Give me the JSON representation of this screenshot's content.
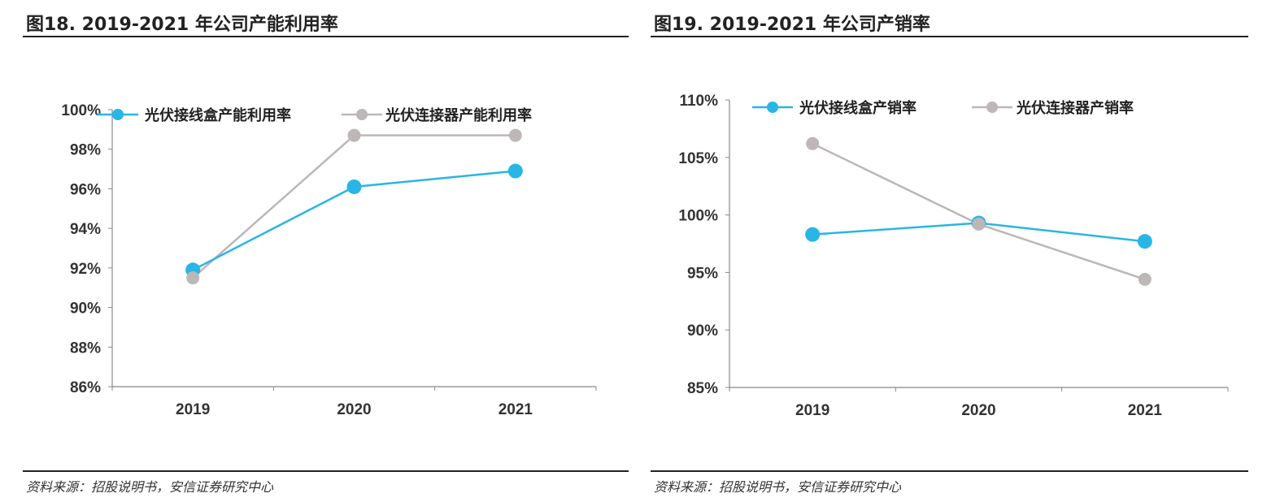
{
  "chart_data": [
    {
      "type": "line",
      "title": "图18. 2019-2021 年公司产能利用率",
      "source": "资料来源：招股说明书，安信证券研究中心",
      "categories": [
        "2019",
        "2020",
        "2021"
      ],
      "ylim": [
        0.86,
        1.0
      ],
      "yticks": [
        "86%",
        "88%",
        "90%",
        "92%",
        "94%",
        "96%",
        "98%",
        "100%"
      ],
      "grid": false,
      "legend": "top",
      "series": [
        {
          "name": "光伏接线盒产能利用率",
          "color": "#29B5E6",
          "values": [
            0.919,
            0.961,
            0.969
          ]
        },
        {
          "name": "光伏连接器产能利用率",
          "color": "#BDB7B7",
          "values": [
            0.915,
            0.987,
            0.987
          ]
        }
      ]
    },
    {
      "type": "line",
      "title": "图19. 2019-2021 年公司产销率",
      "source": "资料来源：招股说明书，安信证券研究中心",
      "categories": [
        "2019",
        "2020",
        "2021"
      ],
      "ylim": [
        0.85,
        1.1
      ],
      "yticks": [
        "85%",
        "90%",
        "95%",
        "100%",
        "105%",
        "110%"
      ],
      "grid": false,
      "legend": "top",
      "series": [
        {
          "name": "光伏接线盒产销率",
          "color": "#29B5E6",
          "values": [
            0.983,
            0.993,
            0.977
          ]
        },
        {
          "name": "光伏连接器产销率",
          "color": "#BDB7B7",
          "values": [
            1.062,
            0.992,
            0.944
          ]
        }
      ]
    }
  ]
}
